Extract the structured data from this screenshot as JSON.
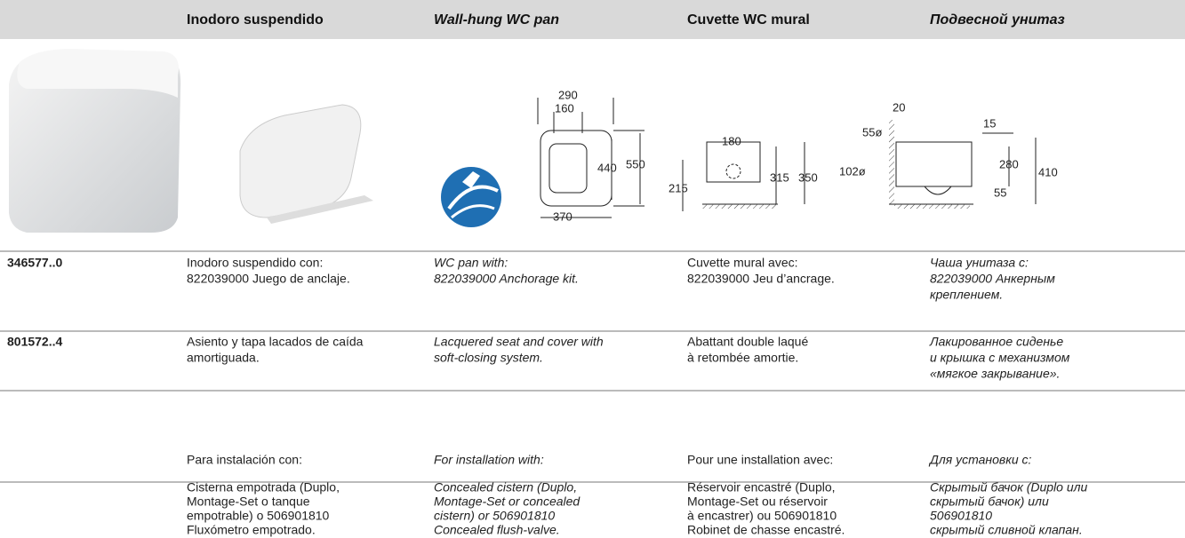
{
  "header": {
    "columns": [
      "Inodoro suspendido",
      "Wall-hung WC pan",
      "Cuvette WC mural",
      "Подвесной унитаз"
    ]
  },
  "drawings": {
    "front_view": {
      "dimensions": [
        "290",
        "160",
        "440",
        "550",
        "370"
      ]
    },
    "side_view": {
      "dimensions": [
        "180",
        "215",
        "315",
        "350"
      ]
    },
    "section_view": {
      "dimensions": [
        "20",
        "55ø",
        "15",
        "102ø",
        "280",
        "410",
        "55"
      ]
    }
  },
  "rows": [
    {
      "code": "346577..0",
      "cells": [
        [
          "Inodoro suspendido con:",
          "822039000 Juego de anclaje."
        ],
        [
          "WC pan with:",
          "822039000 Anchorage kit."
        ],
        [
          "Cuvette mural avec:",
          "822039000 Jeu d’ancrage."
        ],
        [
          "Чаша унитаза с:",
          "822039000 Анкерным",
          "креплением."
        ]
      ]
    },
    {
      "code": "801572..4",
      "cells": [
        [
          "Asiento y tapa lacados de caída",
          "amortiguada."
        ],
        [
          "Lacquered seat and cover with",
          "soft-closing system."
        ],
        [
          "Abattant double laqué",
          "à retombée amortie."
        ],
        [
          "Лакированное сиденье",
          "и крышка с механизмом",
          "«мягкое закрывание»."
        ]
      ]
    },
    {
      "cells": [
        [
          "Para instalación con:"
        ],
        [
          "For installation with:"
        ],
        [
          "Pour une installation avec:"
        ],
        [
          "Для установки с:"
        ]
      ]
    },
    {
      "cells": [
        [
          "Cisterna empotrada (Duplo,",
          "Montage-Set o tanque",
          "empotrable) o 506901810",
          "Fluxómetro empotrado."
        ],
        [
          "Concealed cistern (Duplo,",
          "Montage-Set or concealed",
          "cistern) or 506901810",
          "Concealed flush-valve."
        ],
        [
          "Réservoir encastré (Duplo,",
          "Montage-Set ou réservoir",
          "à encastrer) ou 506901810",
          "Robinet de chasse encastré."
        ],
        [
          "Скрытый бачок (Duplo или",
          "скрытый бачок) или",
          "506901810",
          "скрытый сливной клапан."
        ]
      ]
    }
  ]
}
